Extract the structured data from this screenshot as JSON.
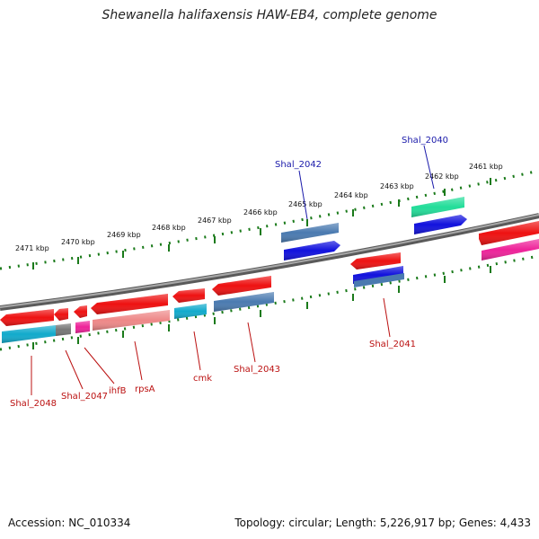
{
  "title": "Shewanella halifaxensis HAW-EB4, complete genome",
  "footer": {
    "accession": "Accession: NC_010334",
    "summary": "Topology: circular; Length: 5,226,917 bp; Genes: 4,433"
  },
  "colors": {
    "backbone": "#7a7a7a",
    "tick": "#1a7a1a",
    "forward_label": "#1a1aaa",
    "reverse_label": "#bb1111",
    "red": "#ee1111",
    "blue": "#1111dd",
    "steel_blue": "#4a7ab0",
    "green_teal": "#22dd99",
    "cyan": "#11aacc",
    "magenta": "#ee2299",
    "pink": "#ee8888",
    "gray": "#777777"
  },
  "scale": {
    "labels": [
      "2471 kbp",
      "2470 kbp",
      "2469 kbp",
      "2468 kbp",
      "2467 kbp",
      "2466 kbp",
      "2465 kbp",
      "2464 kbp",
      "2463 kbp",
      "2462 kbp",
      "2461 kbp"
    ]
  },
  "gene_labels": {
    "forward": [
      "Shal_2042",
      "Shal_2040"
    ],
    "reverse": [
      "Shal_2048",
      "Shal_2047",
      "ihfB",
      "rpsA",
      "cmk",
      "Shal_2043",
      "Shal_2041"
    ]
  }
}
